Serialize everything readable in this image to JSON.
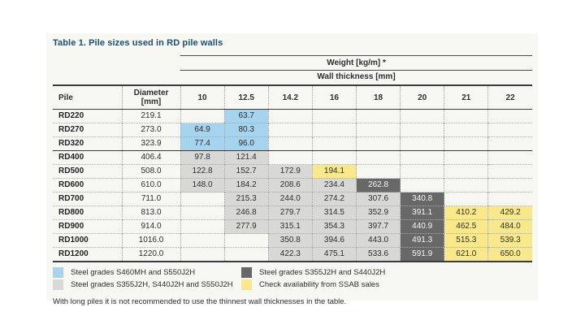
{
  "title": "Table 1. Pile sizes used in RD pile walls",
  "table": {
    "weight_header": "Weight [kg/m] *",
    "wall_thickness_header": "Wall thickness [mm]",
    "pile_header": "Pile",
    "diameter_header_line1": "Diameter",
    "diameter_header_line2": "[mm]",
    "thickness_columns": [
      "10",
      "12.5",
      "14.2",
      "16",
      "18",
      "20",
      "21",
      "22"
    ],
    "rows": [
      {
        "pile": "RD220",
        "diameter": "219.1",
        "values": [
          "",
          "63.7",
          "",
          "",
          "",
          "",
          "",
          ""
        ],
        "colors": [
          "",
          "blue",
          "",
          "",
          "",
          "",
          "",
          ""
        ]
      },
      {
        "pile": "RD270",
        "diameter": "273.0",
        "values": [
          "64.9",
          "80.3",
          "",
          "",
          "",
          "",
          "",
          ""
        ],
        "colors": [
          "blue",
          "blue",
          "",
          "",
          "",
          "",
          "",
          ""
        ]
      },
      {
        "pile": "RD320",
        "diameter": "323.9",
        "values": [
          "77.4",
          "96.0",
          "",
          "",
          "",
          "",
          "",
          ""
        ],
        "colors": [
          "blue",
          "blue",
          "",
          "",
          "",
          "",
          "",
          ""
        ]
      },
      {
        "pile": "RD400",
        "diameter": "406.4",
        "group_start": true,
        "values": [
          "97.8",
          "121.4",
          "",
          "",
          "",
          "",
          "",
          ""
        ],
        "colors": [
          "gray",
          "gray",
          "",
          "",
          "",
          "",
          "",
          ""
        ]
      },
      {
        "pile": "RD500",
        "diameter": "508.0",
        "values": [
          "122.8",
          "152.7",
          "172.9",
          "194.1",
          "",
          "",
          "",
          ""
        ],
        "colors": [
          "gray",
          "gray",
          "gray",
          "yellow",
          "",
          "",
          "",
          ""
        ]
      },
      {
        "pile": "RD600",
        "diameter": "610.0",
        "values": [
          "148.0",
          "184.2",
          "208.6",
          "234.4",
          "262.8",
          "",
          "",
          ""
        ],
        "colors": [
          "gray",
          "gray",
          "gray",
          "gray",
          "dark",
          "",
          "",
          ""
        ]
      },
      {
        "pile": "RD700",
        "diameter": "711.0",
        "values": [
          "",
          "215.3",
          "244.0",
          "274.2",
          "307.6",
          "340.8",
          "",
          ""
        ],
        "colors": [
          "",
          "gray",
          "gray",
          "gray",
          "gray",
          "dark",
          "",
          ""
        ]
      },
      {
        "pile": "RD800",
        "diameter": "813.0",
        "values": [
          "",
          "246.8",
          "279.7",
          "314.5",
          "352.9",
          "391.1",
          "410.2",
          "429.2"
        ],
        "colors": [
          "",
          "gray",
          "gray",
          "gray",
          "gray",
          "dark",
          "yellow",
          "yellow"
        ]
      },
      {
        "pile": "RD900",
        "diameter": "914.0",
        "values": [
          "",
          "277.9",
          "315.1",
          "354.3",
          "397.7",
          "440.9",
          "462.5",
          "484.0"
        ],
        "colors": [
          "",
          "gray",
          "gray",
          "gray",
          "gray",
          "dark",
          "yellow",
          "yellow"
        ]
      },
      {
        "pile": "RD1000",
        "diameter": "1016.0",
        "values": [
          "",
          "",
          "350.8",
          "394.6",
          "443.0",
          "491.3",
          "515.3",
          "539.3"
        ],
        "colors": [
          "",
          "",
          "gray",
          "gray",
          "gray",
          "dark",
          "yellow",
          "yellow"
        ]
      },
      {
        "pile": "RD1200",
        "diameter": "1220.0",
        "values": [
          "",
          "",
          "422.3",
          "475.1",
          "533.6",
          "591.9",
          "621.0",
          "650.0"
        ],
        "colors": [
          "",
          "",
          "gray",
          "gray",
          "gray",
          "dark",
          "yellow",
          "yellow"
        ]
      }
    ]
  },
  "colors": {
    "blue": "#a6d3ee",
    "gray": "#d8d8d6",
    "dark": "#686868",
    "yellow": "#fae98c",
    "dark_cell_text": "#f5f5f5",
    "title": "#1d4f72"
  },
  "legend": {
    "items": [
      {
        "swatch": "blue",
        "label": "Steel grades S460MH and S550J2H"
      },
      {
        "swatch": "dark",
        "label": "Steel grades S355J2H and S440J2H"
      },
      {
        "swatch": "gray",
        "label": "Steel grades S355J2H, S440J2H and S550J2H"
      },
      {
        "swatch": "yellow",
        "label": "Check availability  from SSAB sales"
      }
    ]
  },
  "footnote": "With long piles it is not recommended to use the thinnest wall thicknesses in the table."
}
